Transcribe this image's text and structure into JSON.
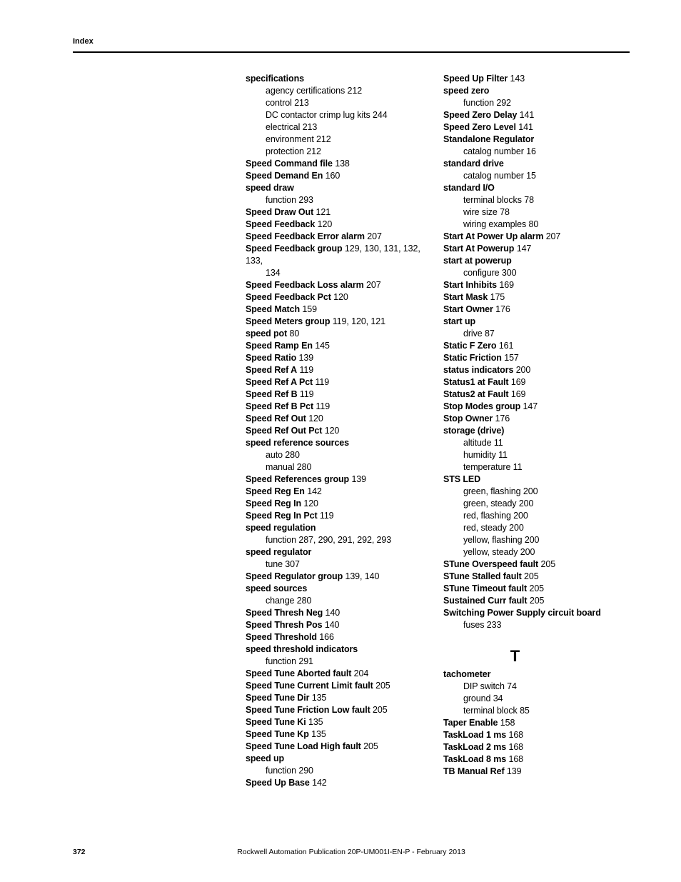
{
  "header": "Index",
  "footer": {
    "page_number": "372",
    "publication": "Rockwell Automation Publication 20P-UM001I-EN-P - February 2013"
  },
  "left_column": [
    {
      "t": "h",
      "text": "specifications"
    },
    {
      "t": "s",
      "text": "agency certifications 212"
    },
    {
      "t": "s",
      "text": "control 213"
    },
    {
      "t": "s",
      "text": "DC contactor crimp lug kits 244"
    },
    {
      "t": "s",
      "text": "electrical 213"
    },
    {
      "t": "s",
      "text": "environment 212"
    },
    {
      "t": "s",
      "text": "protection 212"
    },
    {
      "t": "hp",
      "bold": "Speed Command file",
      "rest": " 138"
    },
    {
      "t": "hp",
      "bold": "Speed Demand En",
      "rest": " 160"
    },
    {
      "t": "h",
      "text": "speed draw"
    },
    {
      "t": "s",
      "text": "function 293"
    },
    {
      "t": "hp",
      "bold": "Speed Draw Out",
      "rest": " 121"
    },
    {
      "t": "hp",
      "bold": "Speed Feedback",
      "rest": " 120"
    },
    {
      "t": "hp",
      "bold": "Speed Feedback Error alarm",
      "rest": " 207"
    },
    {
      "t": "hp",
      "bold": "Speed Feedback group",
      "rest": " 129, 130, 131, 132, 133,"
    },
    {
      "t": "s",
      "text": "134"
    },
    {
      "t": "hp",
      "bold": "Speed Feedback Loss alarm",
      "rest": " 207"
    },
    {
      "t": "hp",
      "bold": "Speed Feedback Pct",
      "rest": " 120"
    },
    {
      "t": "hp",
      "bold": "Speed Match",
      "rest": " 159"
    },
    {
      "t": "hp",
      "bold": "Speed Meters group",
      "rest": " 119, 120, 121"
    },
    {
      "t": "hp",
      "bold": "speed pot",
      "rest": " 80"
    },
    {
      "t": "hp",
      "bold": "Speed Ramp En",
      "rest": " 145"
    },
    {
      "t": "hp",
      "bold": "Speed Ratio",
      "rest": " 139"
    },
    {
      "t": "hp",
      "bold": "Speed Ref A",
      "rest": " 119"
    },
    {
      "t": "hp",
      "bold": "Speed Ref A Pct",
      "rest": " 119"
    },
    {
      "t": "hp",
      "bold": "Speed Ref B",
      "rest": " 119"
    },
    {
      "t": "hp",
      "bold": "Speed Ref B Pct",
      "rest": " 119"
    },
    {
      "t": "hp",
      "bold": "Speed Ref Out",
      "rest": " 120"
    },
    {
      "t": "hp",
      "bold": "Speed Ref Out Pct",
      "rest": " 120"
    },
    {
      "t": "h",
      "text": "speed reference sources"
    },
    {
      "t": "s",
      "text": "auto 280"
    },
    {
      "t": "s",
      "text": "manual 280"
    },
    {
      "t": "hp",
      "bold": "Speed References group",
      "rest": " 139"
    },
    {
      "t": "hp",
      "bold": "Speed Reg En",
      "rest": " 142"
    },
    {
      "t": "hp",
      "bold": "Speed Reg In",
      "rest": " 120"
    },
    {
      "t": "hp",
      "bold": "Speed Reg In Pct",
      "rest": " 119"
    },
    {
      "t": "h",
      "text": "speed regulation"
    },
    {
      "t": "s",
      "text": "function 287, 290, 291, 292, 293"
    },
    {
      "t": "h",
      "text": "speed regulator"
    },
    {
      "t": "s",
      "text": "tune 307"
    },
    {
      "t": "hp",
      "bold": "Speed Regulator group",
      "rest": " 139, 140"
    },
    {
      "t": "h",
      "text": "speed sources"
    },
    {
      "t": "s",
      "text": "change 280"
    },
    {
      "t": "hp",
      "bold": "Speed Thresh Neg",
      "rest": " 140"
    },
    {
      "t": "hp",
      "bold": "Speed Thresh Pos",
      "rest": " 140"
    },
    {
      "t": "hp",
      "bold": "Speed Threshold",
      "rest": " 166"
    },
    {
      "t": "h",
      "text": "speed threshold indicators"
    },
    {
      "t": "s",
      "text": "function 291"
    },
    {
      "t": "hp",
      "bold": "Speed Tune Aborted fault",
      "rest": " 204"
    },
    {
      "t": "hp",
      "bold": "Speed Tune Current Limit fault",
      "rest": " 205"
    },
    {
      "t": "hp",
      "bold": "Speed Tune Dir",
      "rest": " 135"
    },
    {
      "t": "hp",
      "bold": "Speed Tune Friction Low fault",
      "rest": " 205"
    },
    {
      "t": "hp",
      "bold": "Speed Tune Ki",
      "rest": " 135"
    },
    {
      "t": "hp",
      "bold": "Speed Tune Kp",
      "rest": " 135"
    },
    {
      "t": "hp",
      "bold": "Speed Tune Load High fault",
      "rest": " 205"
    },
    {
      "t": "h",
      "text": "speed up"
    },
    {
      "t": "s",
      "text": "function 290"
    },
    {
      "t": "hp",
      "bold": "Speed Up Base",
      "rest": " 142"
    }
  ],
  "right_column_top": [
    {
      "t": "hp",
      "bold": "Speed Up Filter",
      "rest": " 143"
    },
    {
      "t": "h",
      "text": "speed zero"
    },
    {
      "t": "s",
      "text": "function 292"
    },
    {
      "t": "hp",
      "bold": "Speed Zero Delay",
      "rest": " 141"
    },
    {
      "t": "hp",
      "bold": "Speed Zero Level",
      "rest": " 141"
    },
    {
      "t": "h",
      "text": "Standalone Regulator"
    },
    {
      "t": "s",
      "text": "catalog number 16"
    },
    {
      "t": "h",
      "text": "standard drive"
    },
    {
      "t": "s",
      "text": "catalog number 15"
    },
    {
      "t": "h",
      "text": "standard I/O"
    },
    {
      "t": "s",
      "text": "terminal blocks 78"
    },
    {
      "t": "s",
      "text": "wire size 78"
    },
    {
      "t": "s",
      "text": "wiring examples 80"
    },
    {
      "t": "hp",
      "bold": "Start At Power Up alarm",
      "rest": " 207"
    },
    {
      "t": "hp",
      "bold": "Start At Powerup",
      "rest": " 147"
    },
    {
      "t": "h",
      "text": "start at powerup"
    },
    {
      "t": "s",
      "text": "configure 300"
    },
    {
      "t": "hp",
      "bold": "Start Inhibits",
      "rest": " 169"
    },
    {
      "t": "hp",
      "bold": "Start Mask",
      "rest": " 175"
    },
    {
      "t": "hp",
      "bold": "Start Owner",
      "rest": " 176"
    },
    {
      "t": "h",
      "text": "start up"
    },
    {
      "t": "s",
      "text": "drive 87"
    },
    {
      "t": "hp",
      "bold": "Static F Zero",
      "rest": " 161"
    },
    {
      "t": "hp",
      "bold": "Static Friction",
      "rest": " 157"
    },
    {
      "t": "hp",
      "bold": "status indicators",
      "rest": " 200"
    },
    {
      "t": "hp",
      "bold": "Status1 at Fault",
      "rest": " 169"
    },
    {
      "t": "hp",
      "bold": "Status2 at Fault",
      "rest": " 169"
    },
    {
      "t": "hp",
      "bold": "Stop Modes group",
      "rest": " 147"
    },
    {
      "t": "hp",
      "bold": "Stop Owner",
      "rest": " 176"
    },
    {
      "t": "h",
      "text": "storage (drive)"
    },
    {
      "t": "s",
      "text": "altitude 11"
    },
    {
      "t": "s",
      "text": "humidity 11"
    },
    {
      "t": "s",
      "text": "temperature 11"
    },
    {
      "t": "h",
      "text": "STS LED"
    },
    {
      "t": "s",
      "text": "green, flashing 200"
    },
    {
      "t": "s",
      "text": "green, steady 200"
    },
    {
      "t": "s",
      "text": "red, flashing 200"
    },
    {
      "t": "s",
      "text": "red, steady 200"
    },
    {
      "t": "s",
      "text": "yellow, flashing 200"
    },
    {
      "t": "s",
      "text": "yellow, steady 200"
    },
    {
      "t": "hp",
      "bold": "STune Overspeed fault",
      "rest": " 205"
    },
    {
      "t": "hp",
      "bold": "STune Stalled fault",
      "rest": " 205"
    },
    {
      "t": "hp",
      "bold": "STune Timeout fault",
      "rest": " 205"
    },
    {
      "t": "hp",
      "bold": "Sustained Curr fault",
      "rest": " 205"
    },
    {
      "t": "h",
      "text": "Switching Power Supply circuit board"
    },
    {
      "t": "s",
      "text": "fuses 233"
    }
  ],
  "section_letter": "T",
  "right_column_bottom": [
    {
      "t": "h",
      "text": "tachometer"
    },
    {
      "t": "s",
      "text": "DIP switch 74"
    },
    {
      "t": "s",
      "text": "ground 34"
    },
    {
      "t": "s",
      "text": "terminal block 85"
    },
    {
      "t": "hp",
      "bold": "Taper Enable",
      "rest": " 158"
    },
    {
      "t": "hp",
      "bold": "TaskLoad 1 ms",
      "rest": " 168"
    },
    {
      "t": "hp",
      "bold": "TaskLoad 2 ms",
      "rest": " 168"
    },
    {
      "t": "hp",
      "bold": "TaskLoad 8 ms",
      "rest": " 168"
    },
    {
      "t": "hp",
      "bold": "TB Manual Ref",
      "rest": " 139"
    }
  ]
}
